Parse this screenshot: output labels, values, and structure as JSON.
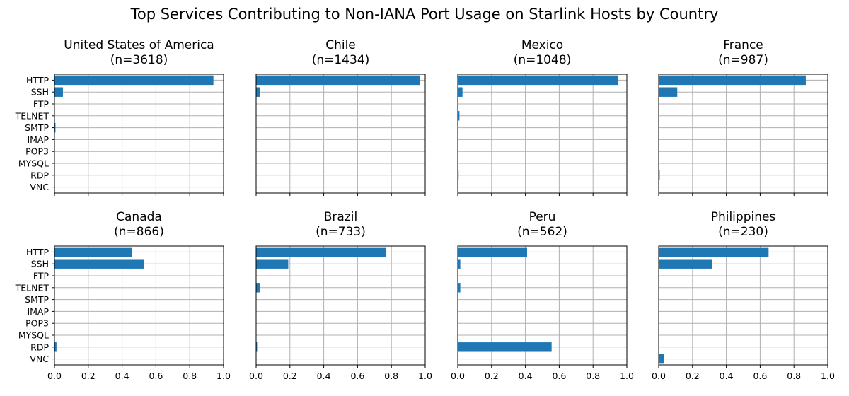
{
  "title": "Top Services Contributing to Non-IANA Port Usage on Starlink Hosts by Country",
  "bar_color": "#1f77b4",
  "grid_color": "#b0b0b0",
  "chart_data": [
    {
      "type": "bar",
      "orientation": "horizontal",
      "country": "United States of America",
      "n_label": "(n=3618)",
      "categories": [
        "HTTP",
        "SSH",
        "FTP",
        "TELNET",
        "SMTP",
        "IMAP",
        "POP3",
        "MYSQL",
        "RDP",
        "VNC"
      ],
      "values": [
        0.94,
        0.05,
        0.0,
        0.0,
        0.006,
        0.0,
        0.0,
        0.0,
        0.0,
        0.0
      ],
      "xlim": [
        0,
        1
      ],
      "xticks": [],
      "grid": true
    },
    {
      "type": "bar",
      "orientation": "horizontal",
      "country": "Chile",
      "n_label": "(n=1434)",
      "categories": [
        "HTTP",
        "SSH",
        "FTP",
        "TELNET",
        "SMTP",
        "IMAP",
        "POP3",
        "MYSQL",
        "RDP",
        "VNC"
      ],
      "values": [
        0.97,
        0.025,
        0.0,
        0.0,
        0.0,
        0.0,
        0.0,
        0.0,
        0.0,
        0.0
      ],
      "xlim": [
        0,
        1
      ],
      "xticks": [],
      "grid": true
    },
    {
      "type": "bar",
      "orientation": "horizontal",
      "country": "Mexico",
      "n_label": "(n=1048)",
      "categories": [
        "HTTP",
        "SSH",
        "FTP",
        "TELNET",
        "SMTP",
        "IMAP",
        "POP3",
        "MYSQL",
        "RDP",
        "VNC"
      ],
      "values": [
        0.95,
        0.028,
        0.004,
        0.01,
        0.0,
        0.0,
        0.0,
        0.0,
        0.005,
        0.0
      ],
      "xlim": [
        0,
        1
      ],
      "xticks": [],
      "grid": true
    },
    {
      "type": "bar",
      "orientation": "horizontal",
      "country": "France",
      "n_label": "(n=987)",
      "categories": [
        "HTTP",
        "SSH",
        "FTP",
        "TELNET",
        "SMTP",
        "IMAP",
        "POP3",
        "MYSQL",
        "RDP",
        "VNC"
      ],
      "values": [
        0.87,
        0.11,
        0.0,
        0.0,
        0.0,
        0.0,
        0.0,
        0.0,
        0.006,
        0.0
      ],
      "xlim": [
        0,
        1
      ],
      "xticks": [],
      "grid": true
    },
    {
      "type": "bar",
      "orientation": "horizontal",
      "country": "Canada",
      "n_label": "(n=866)",
      "categories": [
        "HTTP",
        "SSH",
        "FTP",
        "TELNET",
        "SMTP",
        "IMAP",
        "POP3",
        "MYSQL",
        "RDP",
        "VNC"
      ],
      "values": [
        0.46,
        0.53,
        0.0,
        0.0,
        0.0,
        0.0,
        0.0,
        0.0,
        0.012,
        0.0
      ],
      "xlim": [
        0,
        1
      ],
      "xticks": [
        "0.0",
        "0.2",
        "0.4",
        "0.6",
        "0.8",
        "1.0"
      ],
      "grid": true
    },
    {
      "type": "bar",
      "orientation": "horizontal",
      "country": "Brazil",
      "n_label": "(n=733)",
      "categories": [
        "HTTP",
        "SSH",
        "FTP",
        "TELNET",
        "SMTP",
        "IMAP",
        "POP3",
        "MYSQL",
        "RDP",
        "VNC"
      ],
      "values": [
        0.77,
        0.19,
        0.0,
        0.025,
        0.0,
        0.0,
        0.0,
        0.0,
        0.006,
        0.0
      ],
      "xlim": [
        0,
        1
      ],
      "xticks": [
        "0.0",
        "0.2",
        "0.4",
        "0.6",
        "0.8",
        "1.0"
      ],
      "grid": true
    },
    {
      "type": "bar",
      "orientation": "horizontal",
      "country": "Peru",
      "n_label": "(n=562)",
      "categories": [
        "HTTP",
        "SSH",
        "FTP",
        "TELNET",
        "SMTP",
        "IMAP",
        "POP3",
        "MYSQL",
        "RDP",
        "VNC"
      ],
      "values": [
        0.41,
        0.015,
        0.0,
        0.015,
        0.0,
        0.0,
        0.0,
        0.0,
        0.555,
        0.0
      ],
      "xlim": [
        0,
        1
      ],
      "xticks": [
        "0.0",
        "0.2",
        "0.4",
        "0.6",
        "0.8",
        "1.0"
      ],
      "grid": true
    },
    {
      "type": "bar",
      "orientation": "horizontal",
      "country": "Philippines",
      "n_label": "(n=230)",
      "categories": [
        "HTTP",
        "SSH",
        "FTP",
        "TELNET",
        "SMTP",
        "IMAP",
        "POP3",
        "MYSQL",
        "RDP",
        "VNC"
      ],
      "values": [
        0.65,
        0.315,
        0.0,
        0.0,
        0.0,
        0.0,
        0.0,
        0.0,
        0.0,
        0.03
      ],
      "xlim": [
        0,
        1
      ],
      "xticks": [
        "0.0",
        "0.2",
        "0.4",
        "0.6",
        "0.8",
        "1.0"
      ],
      "grid": true
    }
  ]
}
